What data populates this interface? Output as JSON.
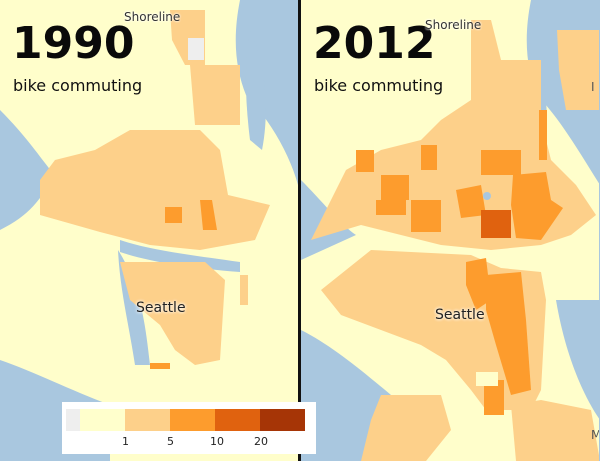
{
  "panels": [
    {
      "year": "1990",
      "subtitle": "bike commuting",
      "labels": {
        "north": "Shoreline",
        "city": "Seattle"
      }
    },
    {
      "year": "2012",
      "subtitle": "bike commuting",
      "labels": {
        "north": "Shoreline",
        "city": "Seattle",
        "edge_top": "I",
        "edge_bottom": "M"
      }
    }
  ],
  "legend": {
    "colors": [
      "#eeeeee",
      "#ffffcc",
      "#fdd08a",
      "#fd9c2d",
      "#e0620f",
      "#a63506"
    ],
    "ticks": [
      "1",
      "5",
      "10",
      "20"
    ]
  },
  "colors": {
    "water": "#a9c7df",
    "land": "#fffecb",
    "divider": "#111111"
  }
}
